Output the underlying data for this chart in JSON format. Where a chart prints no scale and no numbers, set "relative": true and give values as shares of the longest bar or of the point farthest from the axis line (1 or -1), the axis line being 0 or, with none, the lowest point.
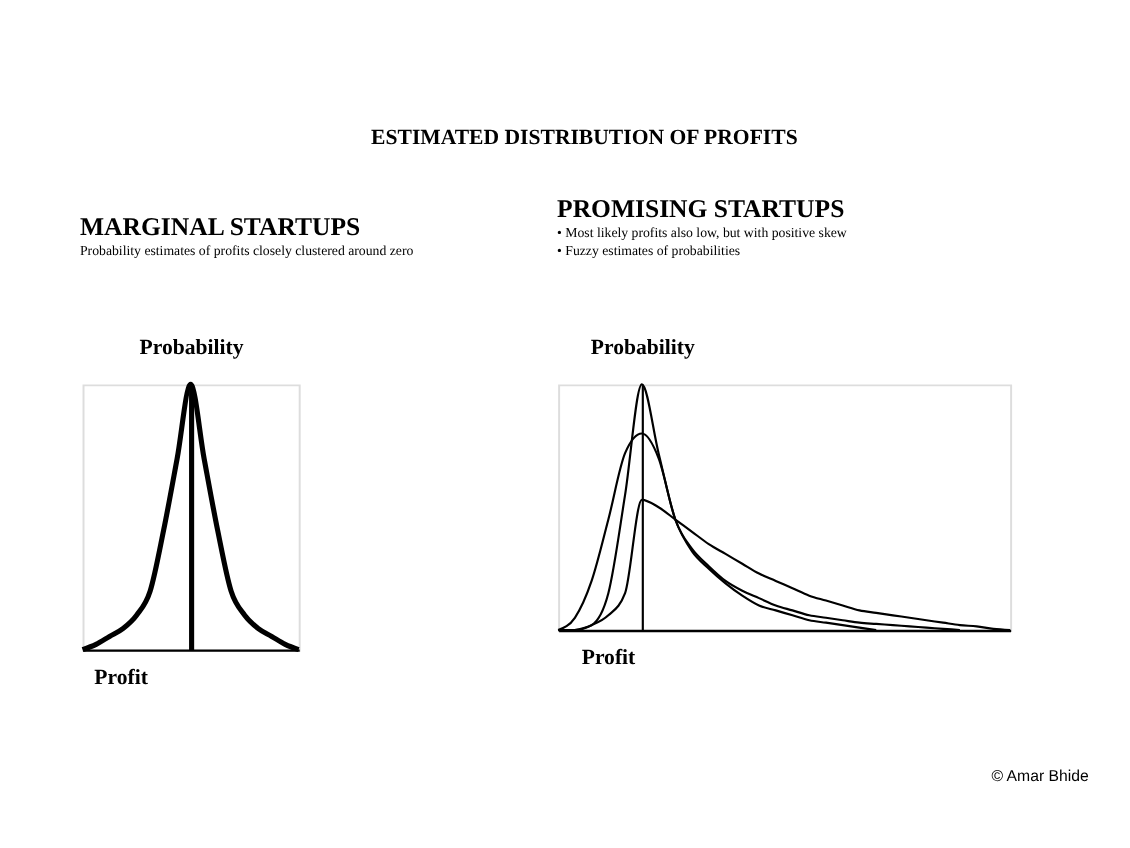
{
  "chart_data": [
    {
      "type": "line",
      "title": "MARGINAL STARTUPS",
      "subtitle": "Probability estimates of profits closely clustered around zero",
      "xlabel": "Profit",
      "ylabel": "Probability",
      "relative": true,
      "tick_labels": false,
      "annotations": [
        "ESTIMATED DISTRIBUTION OF PROFITS"
      ],
      "categories": [
        null,
        null,
        null,
        null,
        null,
        null,
        null,
        null,
        null,
        null,
        null,
        null,
        null,
        null,
        null,
        null,
        null
      ],
      "series": [
        {
          "color": "#000000",
          "values": [
            0,
            0.02,
            0.05,
            0.08,
            0.13,
            0.22,
            0.45,
            0.72,
            1,
            0.72,
            0.45,
            0.22,
            0.13,
            0.08,
            0.05,
            0.02,
            0
          ]
        }
      ]
    },
    {
      "type": "line",
      "title": "PROMISING STARTUPS",
      "subtitle": "•  Most likely profits also low, but with positive skew\n•  Fuzzy estimates of probabilities",
      "xlabel": "Profit",
      "ylabel": "Probability",
      "relative": true,
      "tick_labels": false,
      "annotations": [
        "© Amar Bhide"
      ],
      "categories": [
        null,
        null,
        null,
        null,
        null,
        null,
        null,
        null,
        null,
        null,
        null,
        null,
        null,
        null,
        null,
        null,
        null,
        null,
        null,
        null,
        null,
        null,
        null,
        null,
        null,
        null,
        null,
        null
      ],
      "series": [
        {
          "color": "#000000",
          "values": [
            0,
            0,
            0.02,
            0.15,
            0.55,
            1,
            0.72,
            0.45,
            0.33,
            0.26,
            0.2,
            0.16,
            0.13,
            0.1,
            0.08,
            0.06,
            0.05,
            0.04,
            0.03,
            0.025,
            0.02,
            0.015,
            0.01,
            0.005,
            0,
            null,
            null,
            null
          ]
        },
        {
          "color": "#000000",
          "values": [
            0,
            0.05,
            0.2,
            0.45,
            0.72,
            0.8,
            0.7,
            0.45,
            0.32,
            0.25,
            0.19,
            0.14,
            0.1,
            0.08,
            0.06,
            0.04,
            0.03,
            0.02,
            0.01,
            0,
            null,
            null,
            null,
            null,
            null,
            null,
            null,
            null
          ]
        },
        {
          "color": "#000000",
          "values": [
            null,
            0,
            0.02,
            0.06,
            0.15,
            0.53,
            0.5,
            0.45,
            0.4,
            0.35,
            0.31,
            0.27,
            0.23,
            0.2,
            0.17,
            0.14,
            0.12,
            0.1,
            0.08,
            0.07,
            0.06,
            0.05,
            0.04,
            0.03,
            0.02,
            0.015,
            0.005,
            0
          ]
        }
      ]
    }
  ]
}
